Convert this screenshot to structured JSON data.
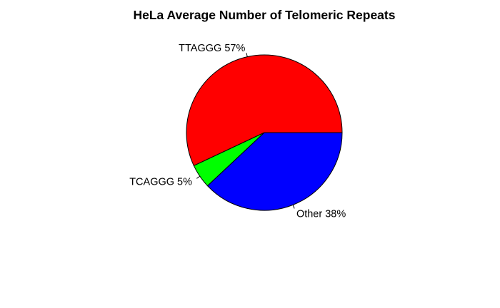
{
  "chart_data": {
    "type": "pie",
    "title": "HeLa Average Number of Telomeric Repeats",
    "slices": [
      {
        "label": "TTAGGG 57%",
        "category": "TTAGGG",
        "value": 57,
        "color": "#FF0000"
      },
      {
        "label": "TCAGGG 5%",
        "category": "TCAGGG",
        "value": 5,
        "color": "#00FF00"
      },
      {
        "label": "Other 38%",
        "category": "Other",
        "value": 38,
        "color": "#0000FF"
      }
    ],
    "start": "3 o'clock",
    "direction": "counterclockwise",
    "legend": "none",
    "slice_border_color": "#000000"
  }
}
